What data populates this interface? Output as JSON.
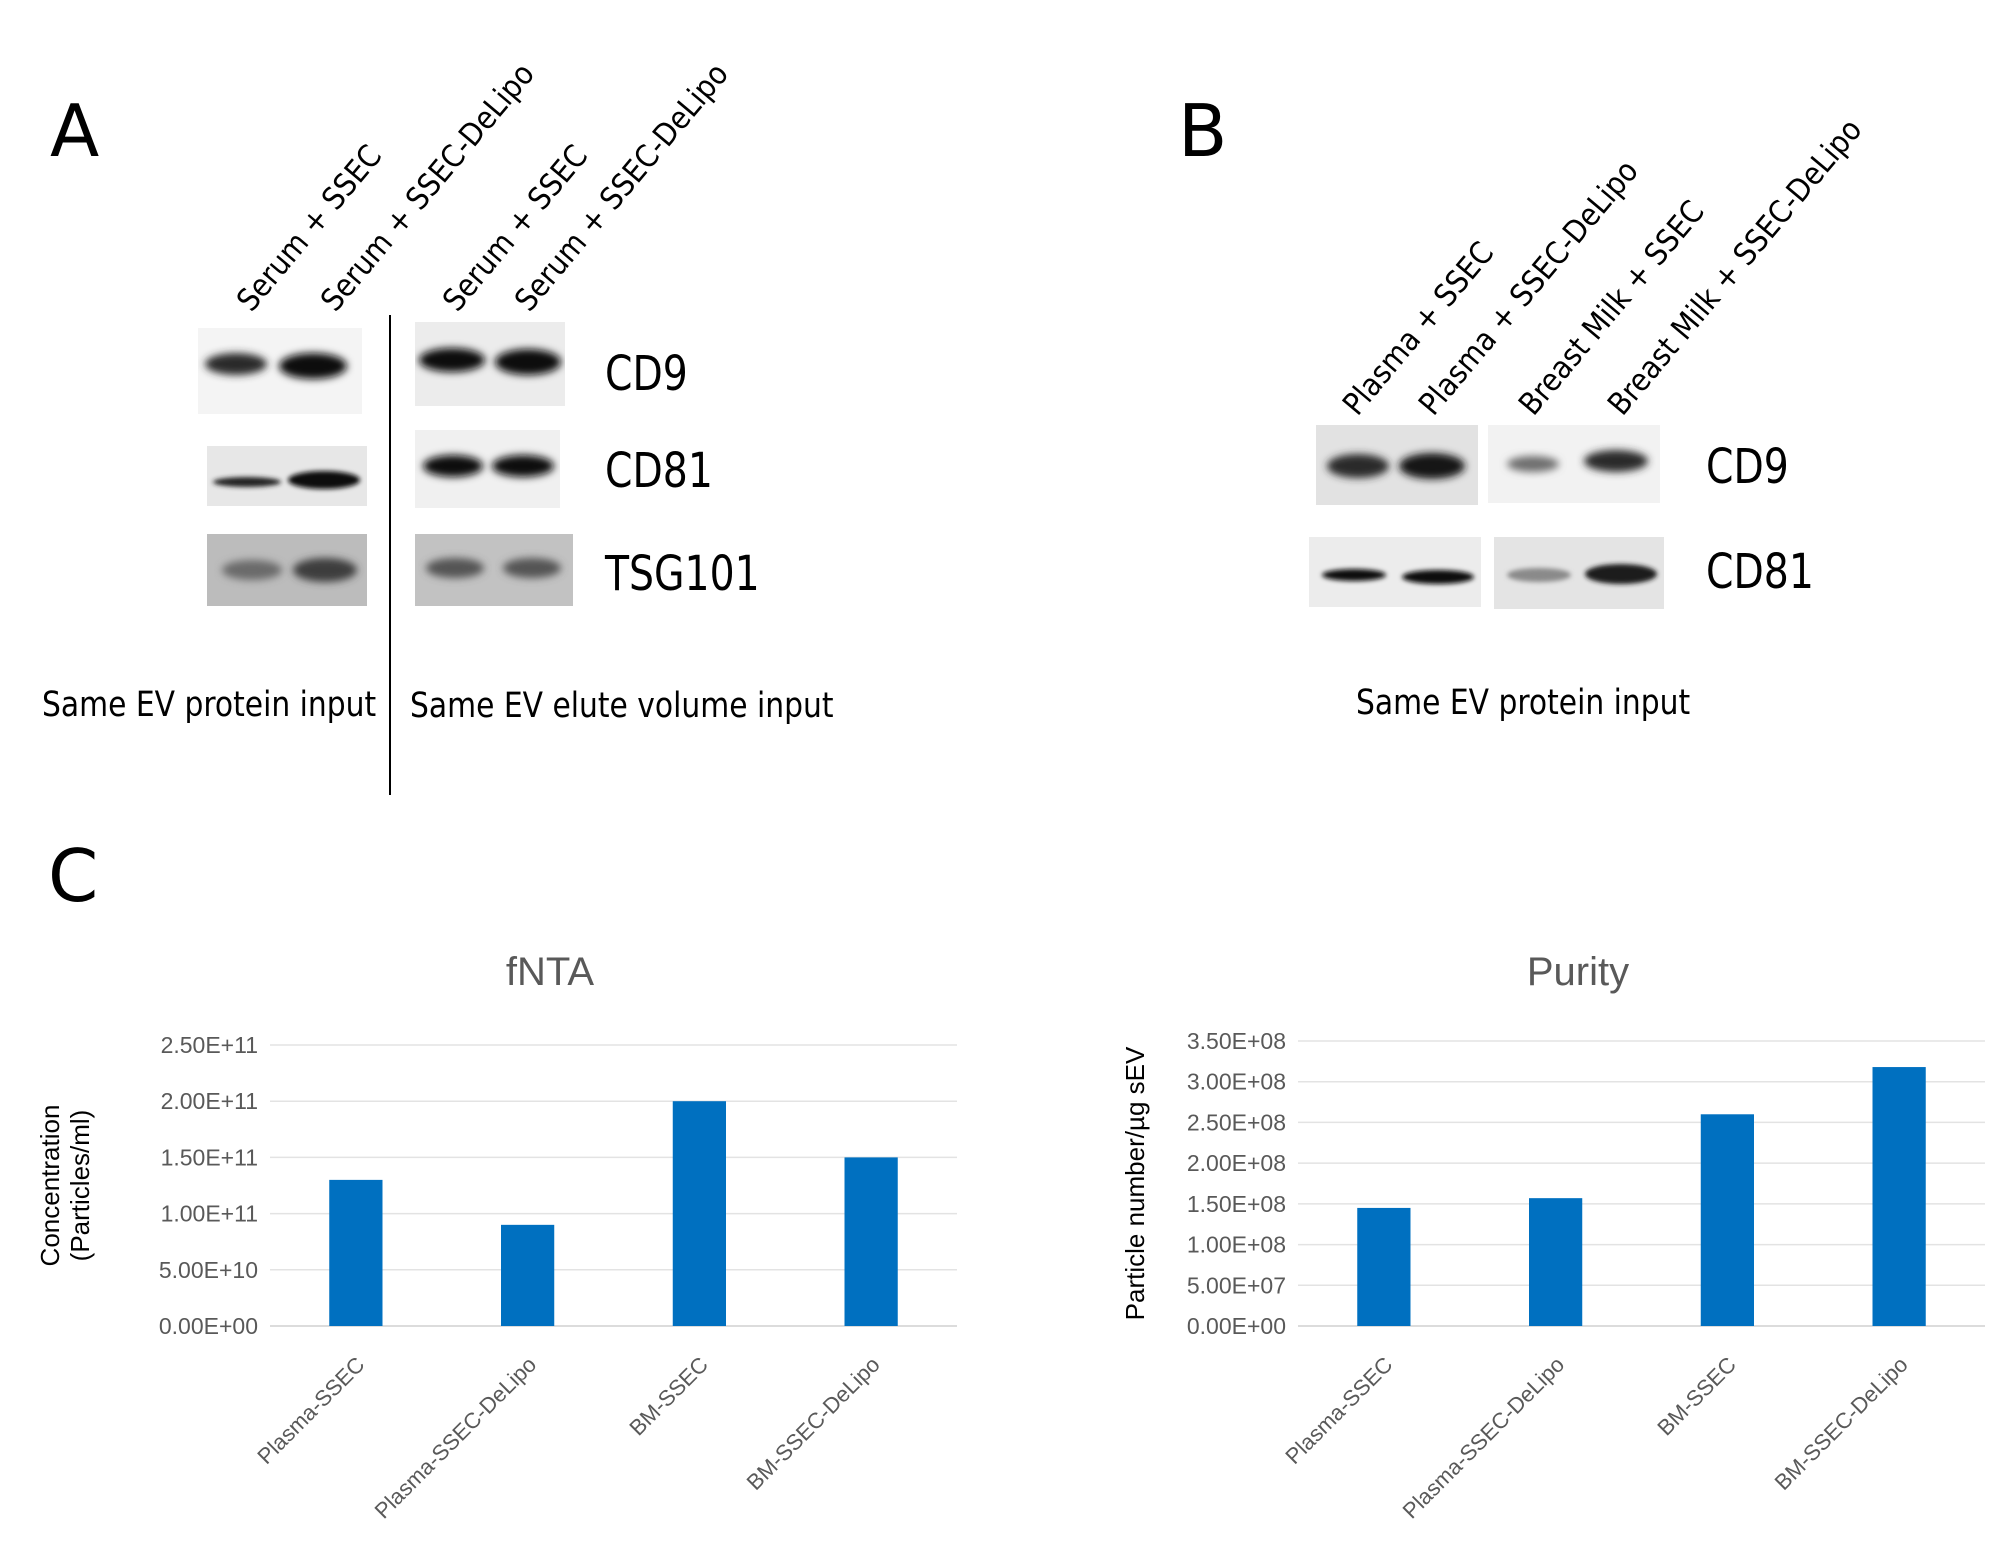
{
  "panel_a": {
    "letter": "A",
    "lane_labels": [
      "Serum + SSEC",
      "Serum + SSEC-DeLipo",
      "Serum + SSEC",
      "Serum + SSEC-DeLipo"
    ],
    "proteins": [
      "CD9",
      "CD81",
      "TSG101"
    ],
    "captions": [
      "Same EV protein input",
      "Same EV elute volume input"
    ]
  },
  "panel_b": {
    "letter": "B",
    "lane_labels": [
      "Plasma + SSEC",
      "Plasma + SSEC-DeLipo",
      "Breast Milk + SSEC",
      "Breast Milk + SSEC-DeLipo"
    ],
    "proteins": [
      "CD9",
      "CD81"
    ],
    "caption": "Same EV protein input"
  },
  "panel_c": {
    "letter": "C"
  },
  "chart_data": [
    {
      "type": "bar",
      "title": "fNTA",
      "ylabel": [
        "Concentration",
        "(Particles/ml)"
      ],
      "xlabel": "",
      "categories": [
        "Plasma-SSEC",
        "Plasma-SSEC-DeLipo",
        "BM-SSEC",
        "BM-SSEC-DeLipo"
      ],
      "values": [
        130000000000.0,
        90000000000.0,
        200000000000.0,
        150000000000.0
      ],
      "ylim": [
        0,
        250000000000.0
      ],
      "yticks": [
        "0.00E+00",
        "5.00E+10",
        "1.00E+11",
        "1.50E+11",
        "2.00E+11",
        "2.50E+11"
      ],
      "grid": true,
      "bar_color": "#0070C0"
    },
    {
      "type": "bar",
      "title": "Purity",
      "ylabel": [
        "Particle number/µg sEV"
      ],
      "xlabel": "",
      "categories": [
        "Plasma-SSEC",
        "Plasma-SSEC-DeLipo",
        "BM-SSEC",
        "BM-SSEC-DeLipo"
      ],
      "values": [
        145000000.0,
        157000000.0,
        260000000.0,
        318000000.0
      ],
      "ylim": [
        0,
        350000000.0
      ],
      "yticks": [
        "0.00E+00",
        "5.00E+07",
        "1.00E+08",
        "1.50E+08",
        "2.00E+08",
        "2.50E+08",
        "3.00E+08",
        "3.50E+08"
      ],
      "grid": true,
      "bar_color": "#0070C0"
    }
  ]
}
